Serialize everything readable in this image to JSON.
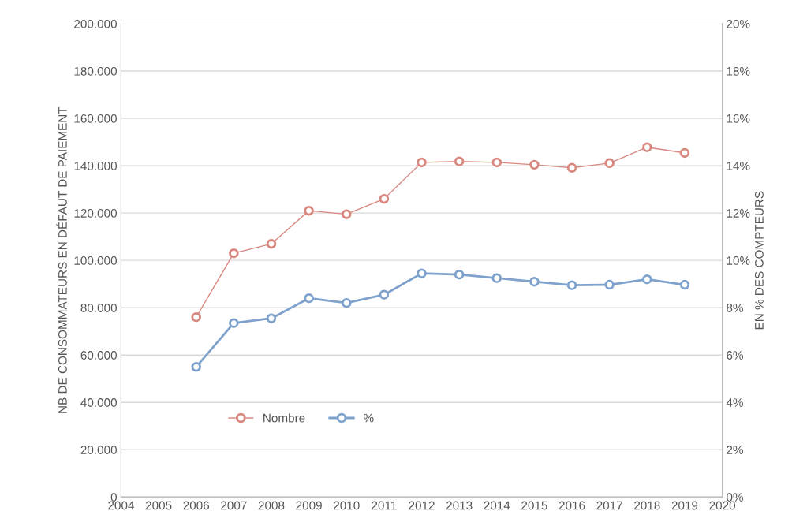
{
  "chart_data": {
    "type": "line",
    "ylabel": "NB DE CONSOMMATEURS EN DÉFAUT DE PAIEMENT",
    "y2label": "EN % DES COMPTEURS",
    "x": [
      2006,
      2007,
      2008,
      2009,
      2010,
      2011,
      2012,
      2013,
      2014,
      2015,
      2016,
      2017,
      2018,
      2019
    ],
    "series": [
      {
        "name": "Nombre",
        "color": "#d98880",
        "values": [
          76000,
          103000,
          107000,
          121000,
          119500,
          126000,
          141400,
          141800,
          141400,
          140400,
          139100,
          141100,
          147800,
          145400
        ]
      },
      {
        "name": "%",
        "color": "#7ea2cc",
        "axis": "y2",
        "values": [
          5.5,
          7.35,
          7.55,
          8.4,
          8.2,
          8.55,
          9.45,
          9.4,
          9.25,
          9.1,
          8.95,
          8.97,
          9.2,
          8.97
        ]
      }
    ],
    "xlim": [
      2004,
      2020
    ],
    "xticks": [
      2004,
      2005,
      2006,
      2007,
      2008,
      2009,
      2010,
      2011,
      2012,
      2013,
      2014,
      2015,
      2016,
      2017,
      2018,
      2019,
      2020
    ],
    "ylim": [
      0,
      200000
    ],
    "yticks": [
      0,
      {
        "value": 20000,
        "label": "20.000"
      },
      {
        "value": 40000,
        "label": "40.000"
      },
      {
        "value": 60000,
        "label": "60.000"
      },
      {
        "value": 80000,
        "label": "80.000"
      },
      {
        "value": 100000,
        "label": "100.000"
      },
      {
        "value": 120000,
        "label": "120.000"
      },
      {
        "value": 140000,
        "label": "140.000"
      },
      {
        "value": 160000,
        "label": "160.000"
      },
      {
        "value": 180000,
        "label": "180.000"
      },
      {
        "value": 200000,
        "label": "200.000"
      }
    ],
    "y2lim": [
      0,
      20
    ],
    "y2ticks": [
      {
        "value": 0,
        "label": "0%"
      },
      {
        "value": 2,
        "label": "2%"
      },
      {
        "value": 4,
        "label": "4%"
      },
      {
        "value": 6,
        "label": "6%"
      },
      {
        "value": 8,
        "label": "8%"
      },
      {
        "value": 10,
        "label": "10%"
      },
      {
        "value": 12,
        "label": "12%"
      },
      {
        "value": 14,
        "label": "14%"
      },
      {
        "value": 16,
        "label": "16%"
      },
      {
        "value": 18,
        "label": "18%"
      },
      {
        "value": 20,
        "label": "20%"
      }
    ],
    "grid": "y",
    "legend": "bottom",
    "marker": "circle",
    "line_style": "solid"
  }
}
